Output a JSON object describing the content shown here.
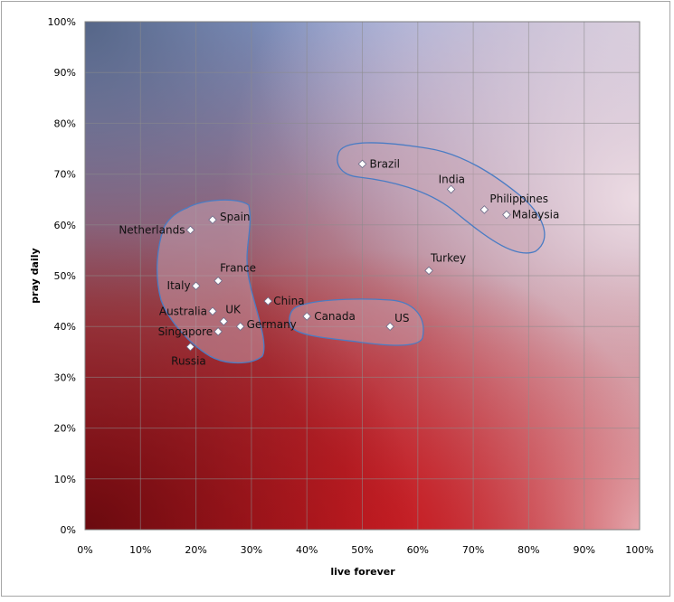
{
  "chart_data": {
    "type": "scatter",
    "title": "",
    "xlabel": "live forever",
    "ylabel": "pray daily",
    "xlim": [
      0,
      100
    ],
    "ylim": [
      0,
      100
    ],
    "x_ticks": [
      "0%",
      "10%",
      "20%",
      "30%",
      "40%",
      "50%",
      "60%",
      "70%",
      "80%",
      "90%",
      "100%"
    ],
    "y_ticks": [
      "0%",
      "10%",
      "20%",
      "30%",
      "40%",
      "50%",
      "60%",
      "70%",
      "80%",
      "90%",
      "100%"
    ],
    "grid": true,
    "legend": "none",
    "marker": "diamond",
    "marker_color": "#ffffff",
    "background": "gradient: dark red at origin, red at bottom center, slate blue top-left, light blue top-right, pale pink right",
    "cluster_outline_color": "#4a7cc4",
    "points": [
      {
        "label": "Brazil",
        "x": 50,
        "y": 72
      },
      {
        "label": "India",
        "x": 66,
        "y": 67
      },
      {
        "label": "Philippines",
        "x": 72,
        "y": 63
      },
      {
        "label": "Malaysia",
        "x": 76,
        "y": 62
      },
      {
        "label": "Turkey",
        "x": 62,
        "y": 51
      },
      {
        "label": "Netherlands",
        "x": 19,
        "y": 59
      },
      {
        "label": "Spain",
        "x": 23,
        "y": 61
      },
      {
        "label": "France",
        "x": 24,
        "y": 49
      },
      {
        "label": "Italy",
        "x": 20,
        "y": 48
      },
      {
        "label": "China",
        "x": 33,
        "y": 45
      },
      {
        "label": "Australia",
        "x": 23,
        "y": 43
      },
      {
        "label": "UK",
        "x": 25,
        "y": 41
      },
      {
        "label": "Germany",
        "x": 28,
        "y": 40
      },
      {
        "label": "Singapore",
        "x": 24,
        "y": 39
      },
      {
        "label": "Russia",
        "x": 19,
        "y": 36
      },
      {
        "label": "Canada",
        "x": 40,
        "y": 42
      },
      {
        "label": "US",
        "x": 55,
        "y": 40
      }
    ]
  }
}
